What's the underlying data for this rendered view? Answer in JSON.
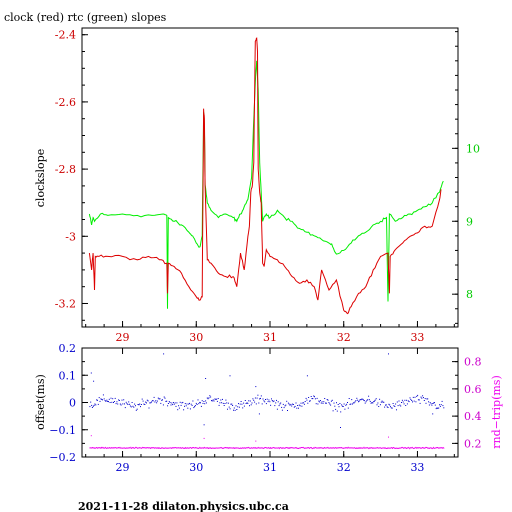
{
  "title": "clock (red) rtc (green) slopes",
  "footer": "2021-11-28  dilaton.physics.ubc.ca",
  "colors": {
    "clock": "#dd0000",
    "rtc": "#00ee00",
    "offset": "#0000cc",
    "rndtrip": "#ee00ee",
    "axis_left_top": "#cc0000",
    "axis_right_top": "#00cc00",
    "axis_left_bottom": "#0000cc",
    "axis_right_bottom": "#cc00cc"
  },
  "chart_data": [
    {
      "type": "line",
      "title": "clock (red) rtc (green) slopes",
      "ylabel": "clockslope",
      "xlim": [
        28.45,
        33.55
      ],
      "ylim": [
        -3.27,
        -2.38
      ],
      "xticks": [
        29,
        30,
        31,
        32,
        33
      ],
      "yticks": [
        -3.2,
        -3,
        -2.8,
        -2.6,
        -2.4
      ],
      "ytick_labels": [
        "-3.2",
        "-3",
        "-2.8",
        "-2.6",
        "-2.4"
      ],
      "right_axis": {
        "ylim": [
          7.55,
          11.65
        ],
        "yticks": [
          8,
          9,
          10
        ],
        "ytick_labels": [
          "8",
          "9",
          "10"
        ]
      },
      "series": [
        {
          "name": "clock (red)",
          "axis": "left",
          "x": [
            28.55,
            28.58,
            28.6,
            28.62,
            28.63,
            28.68,
            28.8,
            29.0,
            29.2,
            29.35,
            29.5,
            29.6,
            29.61,
            29.62,
            29.7,
            29.8,
            29.9,
            30.0,
            30.05,
            30.08,
            30.1,
            30.11,
            30.12,
            30.15,
            30.2,
            30.3,
            30.4,
            30.5,
            30.55,
            30.6,
            30.65,
            30.7,
            30.72,
            30.74,
            30.76,
            30.78,
            30.8,
            30.82,
            30.83,
            30.84,
            30.86,
            30.88,
            30.9,
            30.92,
            30.95,
            31.0,
            31.1,
            31.2,
            31.3,
            31.4,
            31.5,
            31.6,
            31.65,
            31.7,
            31.8,
            31.9,
            32.0,
            32.05,
            32.1,
            32.2,
            32.3,
            32.4,
            32.5,
            32.6,
            32.62,
            32.63,
            32.7,
            32.8,
            32.9,
            33.0,
            33.1,
            33.2,
            33.3,
            33.32
          ],
          "y": [
            -3.05,
            -3.1,
            -3.05,
            -3.16,
            -3.06,
            -3.06,
            -3.06,
            -3.06,
            -3.07,
            -3.06,
            -3.07,
            -3.08,
            -3.17,
            -3.08,
            -3.09,
            -3.11,
            -3.15,
            -3.18,
            -3.19,
            -3.18,
            -2.62,
            -2.65,
            -2.85,
            -3.07,
            -3.08,
            -3.11,
            -3.12,
            -3.12,
            -3.15,
            -3.05,
            -3.1,
            -3.0,
            -2.97,
            -2.87,
            -2.85,
            -2.78,
            -2.42,
            -2.41,
            -2.45,
            -2.8,
            -2.87,
            -2.9,
            -3.08,
            -3.09,
            -3.04,
            -3.06,
            -3.07,
            -3.09,
            -3.12,
            -3.14,
            -3.13,
            -3.15,
            -3.19,
            -3.1,
            -3.16,
            -3.13,
            -3.22,
            -3.23,
            -3.21,
            -3.17,
            -3.15,
            -3.1,
            -3.06,
            -3.05,
            -3.17,
            -3.06,
            -3.04,
            -3.02,
            -3.0,
            -2.99,
            -2.97,
            -2.97,
            -2.89,
            -2.86
          ]
        },
        {
          "name": "rtc (green)",
          "axis": "right",
          "x": [
            28.55,
            28.58,
            28.6,
            28.62,
            28.7,
            28.8,
            29.0,
            29.2,
            29.4,
            29.55,
            29.6,
            29.61,
            29.62,
            29.7,
            29.8,
            29.9,
            29.95,
            30.0,
            30.05,
            30.08,
            30.1,
            30.11,
            30.12,
            30.15,
            30.2,
            30.3,
            30.4,
            30.5,
            30.55,
            30.6,
            30.65,
            30.7,
            30.75,
            30.8,
            30.82,
            30.84,
            30.86,
            30.88,
            30.9,
            30.95,
            31.0,
            31.1,
            31.2,
            31.3,
            31.4,
            31.5,
            31.6,
            31.7,
            31.8,
            31.85,
            31.9,
            32.0,
            32.1,
            32.2,
            32.3,
            32.4,
            32.5,
            32.58,
            32.6,
            32.62,
            32.7,
            32.8,
            32.9,
            33.0,
            33.1,
            33.2,
            33.3,
            33.35
          ],
          "y": [
            9.1,
            8.95,
            9.05,
            9.0,
            9.1,
            9.08,
            9.1,
            9.08,
            9.08,
            9.1,
            9.08,
            7.8,
            9.05,
            9.0,
            8.95,
            8.85,
            8.8,
            8.7,
            8.65,
            8.8,
            10.5,
            10.3,
            9.5,
            9.25,
            9.15,
            9.05,
            9.1,
            9.05,
            9.0,
            9.1,
            9.2,
            9.3,
            9.6,
            10.9,
            11.2,
            10.8,
            9.8,
            9.4,
            9.0,
            9.1,
            9.05,
            9.15,
            9.05,
            9.0,
            8.9,
            8.85,
            8.8,
            8.75,
            8.7,
            8.65,
            8.55,
            8.6,
            8.7,
            8.8,
            8.85,
            8.95,
            9.0,
            9.05,
            7.9,
            9.1,
            9.0,
            9.05,
            9.1,
            9.15,
            9.2,
            9.25,
            9.4,
            9.55
          ]
        }
      ]
    },
    {
      "type": "scatter",
      "ylabel": "offset(ms)",
      "right_ylabel": "rnd−trip(ms)",
      "xlim": [
        28.45,
        33.55
      ],
      "ylim": [
        -0.2,
        0.2
      ],
      "xticks": [
        29,
        30,
        31,
        32,
        33
      ],
      "yticks": [
        -0.2,
        -0.1,
        0,
        0.1,
        0.2
      ],
      "ytick_labels": [
        "−0.2",
        "−0.1",
        "0",
        "0.1",
        "0.2"
      ],
      "right_axis": {
        "ylim": [
          0.1,
          0.9
        ],
        "yticks": [
          0.2,
          0.4,
          0.6,
          0.8
        ],
        "ytick_labels": [
          "0.2",
          "0.4",
          "0.6",
          "0.8"
        ]
      },
      "series": [
        {
          "name": "offset(ms)",
          "axis": "left",
          "x_range": [
            28.55,
            33.35
          ],
          "center": 0.0,
          "spread": 0.025,
          "count": 420,
          "outliers": [
            {
              "x": 28.57,
              "y": 0.11
            },
            {
              "x": 28.6,
              "y": 0.08
            },
            {
              "x": 29.55,
              "y": 0.18
            },
            {
              "x": 30.1,
              "y": -0.08
            },
            {
              "x": 30.12,
              "y": 0.09
            },
            {
              "x": 30.45,
              "y": 0.1
            },
            {
              "x": 30.8,
              "y": 0.06
            },
            {
              "x": 30.85,
              "y": -0.04
            },
            {
              "x": 31.5,
              "y": 0.1
            },
            {
              "x": 31.95,
              "y": -0.09
            },
            {
              "x": 32.6,
              "y": 0.18
            },
            {
              "x": 33.2,
              "y": -0.04
            }
          ]
        },
        {
          "name": "rnd−trip(ms)",
          "axis": "right",
          "x_range": [
            28.55,
            33.35
          ],
          "center": 0.17,
          "spread": 0.006,
          "count": 520,
          "outliers": [
            {
              "x": 28.57,
              "y": 0.26
            },
            {
              "x": 30.1,
              "y": 0.24
            },
            {
              "x": 30.8,
              "y": 0.22
            },
            {
              "x": 32.6,
              "y": 0.25
            }
          ]
        }
      ]
    }
  ]
}
